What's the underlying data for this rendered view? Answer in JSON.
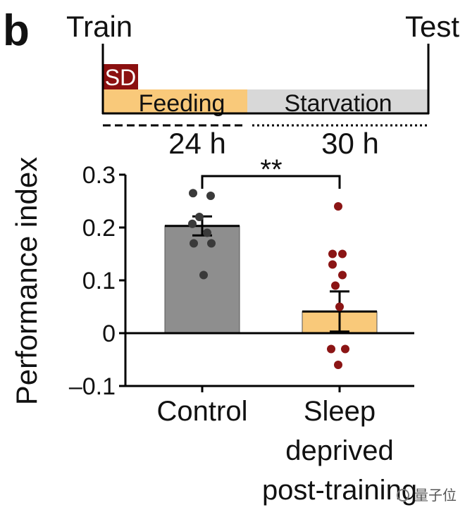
{
  "panel_label": "b",
  "timeline": {
    "start_label": "Train",
    "end_label": "Test",
    "sd_label": "SD",
    "feeding_label": "Feeding",
    "starvation_label": "Starvation",
    "feeding_duration": "24 h",
    "starvation_duration": "30 h",
    "colors": {
      "sd": "#8b1010",
      "feeding": "#f9c97a",
      "starvation": "#d8d8d8"
    }
  },
  "significance": "**",
  "watermark": "量子位",
  "chart_data": {
    "type": "bar",
    "title": "",
    "xlabel": "",
    "ylabel": "Performance index",
    "ylim": [
      -0.1,
      0.3
    ],
    "yticks": [
      {
        "value": 0.3,
        "label": "0.3"
      },
      {
        "value": 0.2,
        "label": "0.2"
      },
      {
        "value": 0.1,
        "label": "0.1"
      },
      {
        "value": 0,
        "label": "0"
      },
      {
        "value": -0.1,
        "label": "–0.1"
      }
    ],
    "categories": [
      {
        "lines": [
          "Control"
        ]
      },
      {
        "lines": [
          "Sleep",
          "deprived",
          "post-training"
        ]
      }
    ],
    "bars": [
      {
        "value": 0.203,
        "sem": 0.018,
        "fill": "#8e8e8e",
        "dot_color": "#3a3a3a",
        "points": [
          0.265,
          0.26,
          0.22,
          0.207,
          0.19,
          0.17,
          0.17,
          0.11
        ]
      },
      {
        "value": 0.041,
        "sem": 0.038,
        "fill": "#f9c97a",
        "dot_color": "#8b1515",
        "points": [
          0.24,
          0.15,
          0.15,
          0.13,
          0.11,
          0.09,
          0.05,
          -0.03,
          -0.03,
          -0.06
        ]
      }
    ]
  }
}
